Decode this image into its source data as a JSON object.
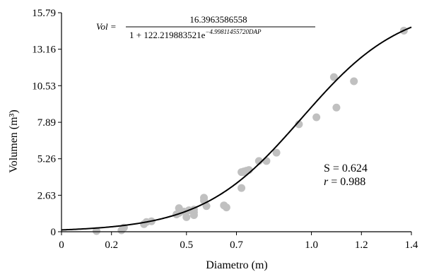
{
  "chart_data": {
    "type": "scatter",
    "xlabel": "Diametro (m)",
    "ylabel": "Volumen (m³)",
    "xlim": [
      0,
      1.4
    ],
    "ylim": [
      0,
      15.79
    ],
    "x_ticks": [
      0,
      0.2,
      0.5,
      0.7,
      1.0,
      1.2,
      1.4
    ],
    "x_tick_labels": [
      "0",
      "0.2",
      "0.5",
      "0.7",
      "1.0",
      "1.2",
      "1.4"
    ],
    "y_ticks": [
      0,
      2.63,
      5.26,
      7.89,
      10.53,
      13.16,
      15.79
    ],
    "y_tick_labels": [
      "0",
      "2.63",
      "5.26",
      "7.89",
      "10.53",
      "13.16",
      "15.79"
    ],
    "grid": false,
    "point_color": "#c0c0c0",
    "curve_color": "#000000",
    "series": [
      {
        "type": "scatter",
        "x": [
          0.14,
          0.24,
          0.25,
          0.33,
          0.34,
          0.36,
          0.46,
          0.47,
          0.47,
          0.49,
          0.5,
          0.51,
          0.53,
          0.53,
          0.53,
          0.58,
          0.57,
          0.57,
          0.65,
          0.66,
          0.72,
          0.72,
          0.73,
          0.73,
          0.74,
          0.75,
          0.79,
          0.82,
          0.86,
          0.95,
          1.02,
          1.09,
          1.1,
          1.17,
          1.37
        ],
        "y": [
          0.05,
          0.1,
          0.3,
          0.55,
          0.7,
          0.75,
          1.25,
          1.35,
          1.7,
          1.45,
          1.05,
          1.55,
          1.4,
          1.6,
          1.2,
          1.85,
          2.25,
          2.45,
          1.9,
          1.75,
          3.15,
          4.3,
          4.35,
          4.3,
          4.4,
          4.45,
          5.1,
          5.1,
          5.7,
          7.75,
          8.25,
          11.15,
          8.95,
          10.85,
          14.5
        ]
      },
      {
        "type": "line",
        "model": "logistic",
        "a": 16.3963586558,
        "b": 122.219883521,
        "c": 4.9981145572
      }
    ],
    "equation": {
      "lhs": "Vol =",
      "numerator": "16.3963586558",
      "denominator_base": "1 + 122.219883521e",
      "denominator_exponent": "−4.99811455720DAP"
    },
    "annotations": {
      "s_text": "S = 0.624",
      "r_symbol": "r",
      "r_rest": " = 0.988"
    }
  }
}
